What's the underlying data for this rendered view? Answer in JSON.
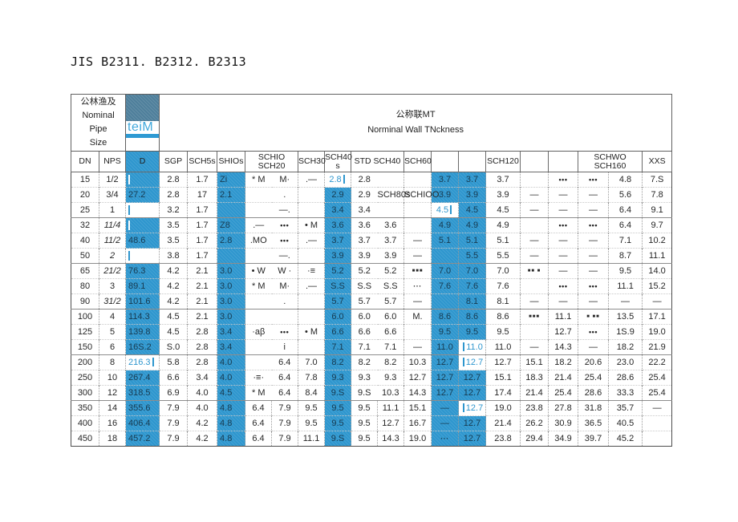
{
  "page": {
    "title": "JIS B2311. B2312. B2313"
  },
  "colors": {
    "highlight_blue": "#2E96CE",
    "dark_header_box": "#4E7F9B",
    "accent_text_blue": "#3FA8DC"
  },
  "table": {
    "header": {
      "left_zh": "公林渔及",
      "left_en1": "Nominal Pipe",
      "left_en2": "Size",
      "d_label": "teiM",
      "right_zh": "公称联MT",
      "right_en": "Norminal Wall TNckness"
    },
    "columns": [
      "dn",
      "nps",
      "d",
      "sgp",
      "sch5s",
      "sh10s",
      "sch10",
      "sch20",
      "sch30",
      "sch40s",
      "std",
      "sch40",
      "sch60",
      "col14",
      "col15",
      "sch120",
      "col17",
      "col18",
      "schwo",
      "sch160",
      "xxs"
    ],
    "header_cells": [
      {
        "t": "DN"
      },
      {
        "t": "NPS"
      },
      {
        "t": "D",
        "s": "blue"
      },
      {
        "t": "SGP"
      },
      {
        "t": "SCH5s"
      },
      {
        "t": "SHIOs"
      },
      {
        "t": "SCHIO SCH20",
        "span": 2
      },
      {
        "t": "SCH30"
      },
      {
        "t": "SCH40 s"
      },
      {
        "t": "STD  SCH40",
        "span": 2
      },
      {
        "t": "SCH60"
      },
      {
        "t": ""
      },
      {
        "t": ""
      },
      {
        "t": "SCH120"
      },
      {
        "t": ""
      },
      {
        "t": ""
      },
      {
        "t": "SCHWO SCH160",
        "span": 2
      },
      {
        "t": "XXS"
      }
    ],
    "rows": [
      [
        "15",
        "1/2",
        {
          "s": "wb"
        },
        "2.8",
        "1.7",
        {
          "t": "Zi",
          "s": "b"
        },
        "* M",
        "M·",
        ".—",
        {
          "t": "2.8",
          "s": "er"
        },
        "2.8",
        "",
        "",
        {
          "t": "3.7",
          "s": "b"
        },
        {
          "t": "3.7",
          "s": "b"
        },
        "3.7",
        "",
        "•••",
        "•••",
        "4.8",
        "7.S"
      ],
      [
        "20",
        "3/4",
        {
          "t": "27.2",
          "s": "b"
        },
        "2.8",
        "17",
        {
          "t": "2.1",
          "s": "b"
        },
        "",
        ".",
        "",
        {
          "t": "2.9",
          "s": "b"
        },
        "2.9",
        "SCH80s",
        "SCHIOO",
        {
          "t": "3.9",
          "s": "b"
        },
        {
          "t": "3.9",
          "s": "b"
        },
        "3.9",
        "—",
        "—",
        "—",
        "5.6",
        "7.8"
      ],
      [
        "25",
        "1",
        {
          "s": "bw"
        },
        "3.2",
        "1.7",
        {
          "s": "b"
        },
        "",
        "—.",
        "",
        {
          "t": "3.4",
          "s": "b"
        },
        "3.4",
        "",
        "",
        {
          "t": "4.5",
          "s": "er"
        },
        {
          "t": "4.5",
          "s": "b"
        },
        "4.5",
        "—",
        "—",
        "—",
        "6.4",
        "9.1"
      ],
      [
        "32",
        {
          "t": "11/4",
          "s": "i"
        },
        {
          "s": "wb"
        },
        "3.5",
        "1.7",
        {
          "t": "Z8",
          "s": "b"
        },
        ".—",
        "•••",
        "• M",
        {
          "t": "3.6",
          "s": "b"
        },
        "3.6",
        "3.6",
        "",
        {
          "t": "4.9",
          "s": "b"
        },
        {
          "t": "4.9",
          "s": "b"
        },
        "4.9",
        "",
        "•••",
        "•••",
        "6.4",
        "9.7"
      ],
      [
        "40",
        {
          "t": "11/2",
          "s": "i"
        },
        {
          "t": "48.6",
          "s": "b"
        },
        "3.5",
        "1.7",
        {
          "t": "2.8",
          "s": "b"
        },
        ".MO",
        "•••",
        ".—",
        {
          "t": "3.7",
          "s": "b"
        },
        "3.7",
        "3.7",
        "—",
        {
          "t": "5.1",
          "s": "b"
        },
        {
          "t": "5.1",
          "s": "b"
        },
        "5.1",
        "—",
        "—",
        "—",
        "7.1",
        "10.2"
      ],
      [
        "50",
        {
          "t": "2",
          "s": "i"
        },
        {
          "s": "bw"
        },
        "3.8",
        "1.7",
        {
          "s": "b"
        },
        "",
        "—.",
        "",
        {
          "t": "3.9",
          "s": "b"
        },
        "3.9",
        "3.9",
        "—",
        {
          "s": "b"
        },
        {
          "t": "5.5",
          "s": "b"
        },
        "5.5",
        "—",
        "—",
        "—",
        "8.7",
        "11.1"
      ],
      [
        "65",
        {
          "t": "21/2",
          "s": "i"
        },
        {
          "t": "76.3",
          "s": "b"
        },
        "4.2",
        "2.1",
        {
          "t": "3.0",
          "s": "b"
        },
        "• W",
        "W ·",
        "·≡",
        {
          "t": "5.2",
          "s": "b"
        },
        "5.2",
        "5.2",
        "■■■",
        {
          "t": "7.0",
          "s": "b"
        },
        {
          "t": "7.0",
          "s": "b"
        },
        "7.0",
        "■■ ■",
        "—",
        "—",
        "9.5",
        "14.0"
      ],
      [
        "80",
        "3",
        {
          "t": "89.1",
          "s": "b"
        },
        "4.2",
        "2.1",
        {
          "t": "3.0",
          "s": "b"
        },
        "* M",
        "M·",
        ".—",
        {
          "t": "S.S",
          "s": "b"
        },
        "S.S",
        "S.S",
        "···",
        {
          "t": "7.6",
          "s": "b"
        },
        {
          "t": "7.6",
          "s": "b"
        },
        "7.6",
        "",
        "•••",
        "•••",
        "11.1",
        "15.2"
      ],
      [
        "90",
        {
          "t": "31/2",
          "s": "i"
        },
        {
          "t": "101.6",
          "s": "b"
        },
        "4.2",
        "2.1",
        {
          "t": "3.0",
          "s": "b"
        },
        "",
        ".",
        "",
        {
          "t": "5.7",
          "s": "b"
        },
        "5.7",
        "5.7",
        "—",
        {
          "s": "b"
        },
        {
          "t": "8.1",
          "s": "b"
        },
        "8.1",
        "—",
        "—",
        "—",
        "—",
        "—"
      ],
      [
        "100",
        "4",
        {
          "t": "114.3",
          "s": "b"
        },
        "4.5",
        "2.1",
        {
          "t": "3.0",
          "s": "b"
        },
        "",
        "",
        "",
        {
          "t": "6.0",
          "s": "b"
        },
        "6.0",
        "6.0",
        "M.",
        {
          "t": "8.6",
          "s": "b"
        },
        {
          "t": "8.6",
          "s": "b"
        },
        "8.6",
        "■■■",
        "11.1",
        "■ ■■",
        "13.5",
        "17.1"
      ],
      [
        "125",
        "5",
        {
          "t": "139.8",
          "s": "b"
        },
        "4.5",
        "2.8",
        {
          "t": "3.4",
          "s": "b"
        },
        "·aβ",
        "•••",
        "• M",
        {
          "t": "6.6",
          "s": "b"
        },
        "6.6",
        "6.6",
        "",
        {
          "t": "9.5",
          "s": "b"
        },
        {
          "t": "9.5",
          "s": "b"
        },
        "9.5",
        "",
        "12.7",
        "•••",
        "1S.9",
        "19.0"
      ],
      [
        "150",
        "6",
        {
          "t": "16S.2",
          "s": "b"
        },
        "S.0",
        "2.8",
        {
          "t": "3.4",
          "s": "b"
        },
        "",
        "i",
        "",
        {
          "t": "7.1",
          "s": "b"
        },
        "7.1",
        "7.1",
        "—",
        {
          "t": "11.0",
          "s": "b"
        },
        {
          "t": "11.0",
          "s": "el"
        },
        "11.0",
        "—",
        "14.3",
        "—",
        "18.2",
        "21.9"
      ],
      [
        "200",
        "8",
        {
          "t": "216.3",
          "s": "er"
        },
        "5.8",
        "2.8",
        {
          "t": "4.0",
          "s": "b"
        },
        "",
        "6.4",
        "7.0",
        {
          "t": "8.2",
          "s": "b"
        },
        "8.2",
        "8.2",
        "10.3",
        {
          "t": "12.7",
          "s": "b"
        },
        {
          "t": "12.7",
          "s": "el"
        },
        "12.7",
        "15.1",
        "18.2",
        "20.6",
        "23.0",
        "22.2"
      ],
      [
        "250",
        "10",
        {
          "t": "267.4",
          "s": "b"
        },
        "6.6",
        "3.4",
        {
          "t": "4.0",
          "s": "b"
        },
        "·≡·",
        "6.4",
        "7.8",
        {
          "t": "9.3",
          "s": "b"
        },
        "9.3",
        "9.3",
        "12.7",
        {
          "t": "12.7",
          "s": "b"
        },
        {
          "t": "12.7",
          "s": "b"
        },
        "15.1",
        "18.3",
        "21.4",
        "25.4",
        "28.6",
        "25.4"
      ],
      [
        "300",
        "12",
        {
          "t": "318.5",
          "s": "b"
        },
        "6.9",
        "4.0",
        {
          "t": "4.5",
          "s": "b"
        },
        "* M",
        "6.4",
        "8.4",
        {
          "t": "9.S",
          "s": "b"
        },
        "9.S",
        "10.3",
        "14.3",
        {
          "t": "12.7",
          "s": "b"
        },
        {
          "t": "12.7",
          "s": "b"
        },
        "17.4",
        "21.4",
        "25.4",
        "28.6",
        "33.3",
        "25.4"
      ],
      [
        "350",
        "14",
        {
          "t": "355.6",
          "s": "b"
        },
        "7.9",
        "4.0",
        {
          "t": "4.8",
          "s": "b"
        },
        "6.4",
        "7.9",
        "9.5",
        {
          "t": "9.5",
          "s": "b"
        },
        "9.5",
        "11.1",
        "15.1",
        {
          "t": "—",
          "s": "b"
        },
        {
          "t": "12.7",
          "s": "el"
        },
        "19.0",
        "23.8",
        "27.8",
        "31.8",
        "35.7",
        "—"
      ],
      [
        "400",
        "16",
        {
          "t": "406.4",
          "s": "b"
        },
        "7.9",
        "4.2",
        {
          "t": "4.8",
          "s": "b"
        },
        "6.4",
        "7.9",
        "9.5",
        {
          "t": "9.5",
          "s": "b"
        },
        "9.5",
        "12.7",
        "16.7",
        {
          "t": "—",
          "s": "b"
        },
        {
          "t": "12.7",
          "s": "b"
        },
        "21.4",
        "26.2",
        "30.9",
        "36.5",
        "40.5",
        ""
      ],
      [
        "450",
        "18",
        {
          "t": "457.2",
          "s": "b"
        },
        "7.9",
        "4.2",
        {
          "t": "4.8",
          "s": "b"
        },
        "6.4",
        "7.9",
        "11.1",
        {
          "t": "9.S",
          "s": "b"
        },
        "9.5",
        "14.3",
        "19.0",
        {
          "t": "···",
          "s": "b"
        },
        {
          "t": "12.7",
          "s": "b"
        },
        "23.8",
        "29.4",
        "34.9",
        "39.7",
        "45.2",
        ""
      ]
    ]
  }
}
